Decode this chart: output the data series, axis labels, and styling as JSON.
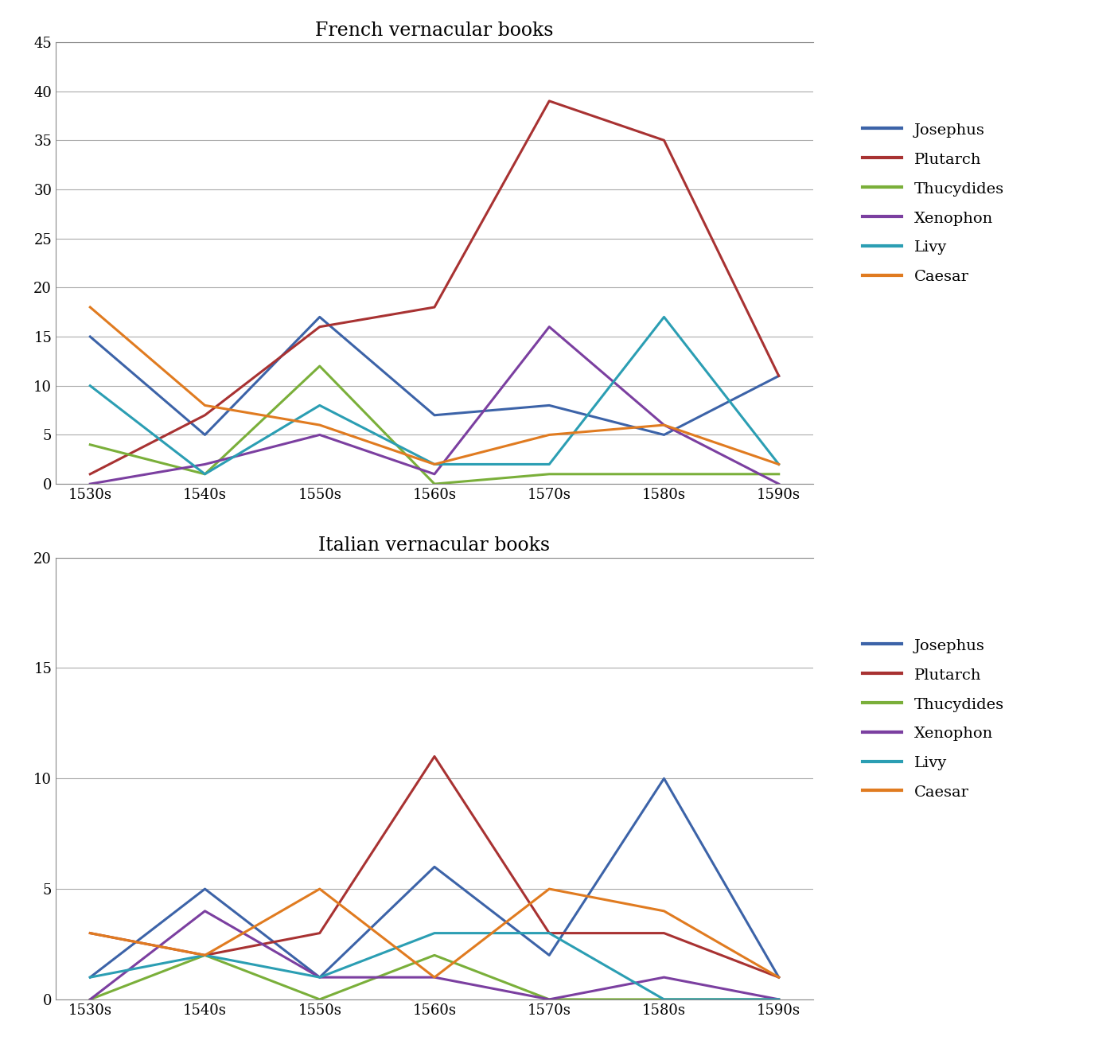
{
  "x_labels": [
    "1530s",
    "1540s",
    "1550s",
    "1560s",
    "1570s",
    "1580s",
    "1590s"
  ],
  "french": {
    "Josephus": [
      15,
      5,
      17,
      7,
      8,
      5,
      11
    ],
    "Plutarch": [
      1,
      7,
      16,
      18,
      39,
      35,
      11
    ],
    "Thucydides": [
      4,
      1,
      12,
      0,
      1,
      1,
      1
    ],
    "Xenophon": [
      0,
      2,
      5,
      1,
      16,
      6,
      0
    ],
    "Livy": [
      10,
      1,
      8,
      2,
      2,
      17,
      2
    ],
    "Caesar": [
      18,
      8,
      6,
      2,
      5,
      6,
      2
    ]
  },
  "italian": {
    "Josephus": [
      1,
      5,
      1,
      6,
      2,
      10,
      1
    ],
    "Plutarch": [
      3,
      2,
      3,
      11,
      3,
      3,
      1
    ],
    "Thucydides": [
      0,
      2,
      0,
      2,
      0,
      0,
      0
    ],
    "Xenophon": [
      0,
      4,
      1,
      1,
      0,
      1,
      0
    ],
    "Livy": [
      1,
      2,
      1,
      3,
      3,
      0,
      0
    ],
    "Caesar": [
      3,
      2,
      5,
      1,
      5,
      4,
      1
    ]
  },
  "colors": {
    "Josephus": "#3C63A8",
    "Plutarch": "#A83232",
    "Thucydides": "#7AAF3A",
    "Xenophon": "#7B3FA0",
    "Livy": "#2B9EB3",
    "Caesar": "#E07B20"
  },
  "french_title": "French vernacular books",
  "italian_title": "Italian vernacular books",
  "french_ylim": [
    0,
    45
  ],
  "italian_ylim": [
    0,
    20
  ],
  "french_yticks": [
    0,
    5,
    10,
    15,
    20,
    25,
    30,
    35,
    40,
    45
  ],
  "italian_yticks": [
    0,
    5,
    10,
    15,
    20
  ],
  "bg_color": "#ffffff",
  "grid_color": "#aaaaaa",
  "line_width": 2.2,
  "legend_fontsize": 14,
  "title_fontsize": 17,
  "tick_fontsize": 13
}
